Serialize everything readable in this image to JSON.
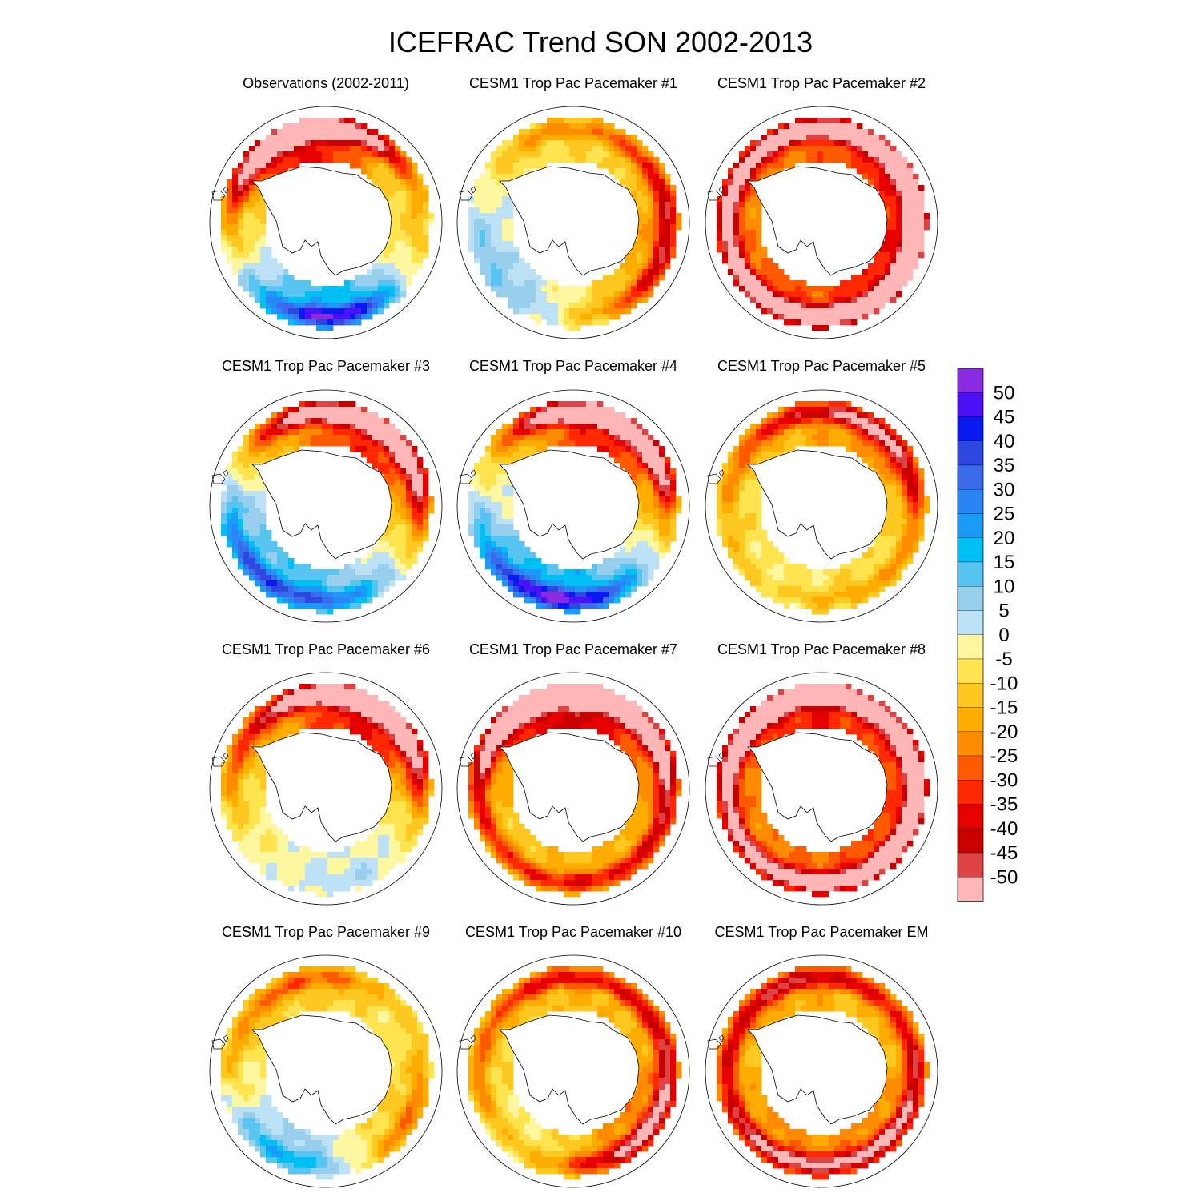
{
  "chart_data": {
    "type": "heatmap",
    "title": "ICEFRAC Trend SON 2002-2013",
    "projection": "south-polar-stereographic",
    "layout": "4x3 panel grid",
    "panels": [
      {
        "title": "Observations (2002-2011)",
        "pattern": {
          "pos": [
            [
              10,
              17,
              5
            ],
            [
              210,
              45,
              4.5
            ],
            [
              175,
              25,
              3
            ],
            [
              150,
              20,
              3
            ],
            [
              275,
              22,
              3
            ],
            [
              320,
              -18,
              4
            ],
            [
              350,
              -35,
              4
            ],
            [
              0,
              -30,
              4
            ],
            [
              60,
              -10,
              3.5
            ],
            [
              85,
              8,
              3
            ],
            [
              100,
              -8,
              3
            ],
            [
              250,
              -10,
              3
            ]
          ],
          "neg": [
            [
              300,
              -8,
              6
            ],
            [
              330,
              -30,
              5
            ],
            [
              260,
              -18,
              4
            ],
            [
              120,
              -12,
              4
            ],
            [
              40,
              -8,
              3
            ],
            [
              200,
              -12,
              4
            ]
          ]
        }
      },
      {
        "title": "CESM1 Trop Pac Pacemaker #1",
        "pattern": {
          "pos": [
            [
              90,
              -28,
              4
            ],
            [
              130,
              -22,
              5
            ],
            [
              160,
              -12,
              5
            ],
            [
              320,
              -15,
              4
            ]
          ],
          "neg": [
            [
              0,
              -8,
              7
            ],
            [
              30,
              -8,
              5
            ],
            [
              60,
              -5,
              4
            ],
            [
              300,
              8,
              5
            ],
            [
              240,
              12,
              5
            ],
            [
              200,
              10,
              4
            ],
            [
              120,
              8,
              5
            ],
            [
              80,
              5,
              4
            ]
          ]
        }
      },
      {
        "title": "CESM1 Trop Pac Pacemaker #2",
        "pattern": {
          "pos": [
            [
              210,
              -35,
              4
            ],
            [
              280,
              -15,
              4
            ],
            [
              320,
              -8,
              4
            ],
            [
              130,
              -22,
              4
            ]
          ],
          "neg": [
            [
              0,
              -18,
              7
            ],
            [
              30,
              -30,
              5
            ],
            [
              60,
              -22,
              5
            ],
            [
              90,
              -20,
              4
            ],
            [
              120,
              -20,
              5
            ],
            [
              150,
              -18,
              4
            ],
            [
              180,
              -12,
              4
            ],
            [
              240,
              -16,
              5
            ],
            [
              300,
              -12,
              5
            ],
            [
              340,
              -8,
              6
            ]
          ]
        }
      },
      {
        "title": "CESM1 Trop Pac Pacemaker #3",
        "pattern": {
          "pos": [
            [
              210,
              45,
              6
            ],
            [
              150,
              35,
              5
            ],
            [
              80,
              18,
              4
            ],
            [
              0,
              15,
              4
            ],
            [
              260,
              20,
              4
            ],
            [
              300,
              12,
              3
            ]
          ],
          "neg": [
            [
              0,
              -36,
              7
            ],
            [
              30,
              -50,
              5
            ],
            [
              120,
              -35,
              5
            ],
            [
              60,
              -20,
              4
            ],
            [
              310,
              -18,
              4
            ],
            [
              180,
              -15,
              4
            ],
            [
              240,
              -12,
              4
            ]
          ]
        }
      },
      {
        "title": "CESM1 Trop Pac Pacemaker #4",
        "pattern": {
          "pos": [
            [
              215,
              48,
              6
            ],
            [
              170,
              20,
              4
            ],
            [
              100,
              10,
              4
            ],
            [
              320,
              12,
              4
            ],
            [
              300,
              8,
              3
            ]
          ],
          "neg": [
            [
              0,
              -38,
              7
            ],
            [
              30,
              -45,
              5
            ],
            [
              60,
              -12,
              4
            ],
            [
              130,
              -10,
              4
            ],
            [
              270,
              -12,
              4
            ],
            [
              340,
              -10,
              5
            ]
          ]
        }
      },
      {
        "title": "CESM1 Trop Pac Pacemaker #5",
        "pattern": {
          "pos": [
            [
              120,
              15,
              4
            ],
            [
              220,
              8,
              4
            ],
            [
              300,
              10,
              4
            ],
            [
              20,
              5,
              4
            ],
            [
              80,
              8,
              3
            ]
          ],
          "neg": [
            [
              0,
              -30,
              6
            ],
            [
              60,
              -25,
              4
            ],
            [
              120,
              -22,
              5
            ],
            [
              40,
              -14,
              4
            ],
            [
              160,
              -10,
              4
            ],
            [
              240,
              -14,
              4
            ],
            [
              310,
              -18,
              4
            ]
          ]
        }
      },
      {
        "title": "CESM1 Trop Pac Pacemaker #6",
        "pattern": {
          "pos": [
            [
              170,
              20,
              4
            ],
            [
              100,
              15,
              4
            ],
            [
              320,
              8,
              3
            ],
            [
              240,
              8,
              4
            ]
          ],
          "neg": [
            [
              0,
              -32,
              6
            ],
            [
              30,
              -45,
              5
            ],
            [
              60,
              -25,
              4
            ],
            [
              140,
              -12,
              5
            ],
            [
              200,
              -10,
              4
            ],
            [
              280,
              -12,
              4
            ],
            [
              330,
              -10,
              5
            ]
          ]
        }
      },
      {
        "title": "CESM1 Trop Pac Pacemaker #7",
        "pattern": {
          "pos": [
            [
              30,
              -44,
              5
            ],
            [
              0,
              -30,
              4
            ],
            [
              330,
              -20,
              3
            ]
          ],
          "neg": [
            [
              0,
              -25,
              5
            ],
            [
              300,
              -30,
              4
            ],
            [
              150,
              -20,
              5
            ],
            [
              190,
              -15,
              5
            ],
            [
              240,
              -12,
              4
            ],
            [
              100,
              -12,
              4
            ],
            [
              60,
              -10,
              4
            ]
          ]
        }
      },
      {
        "title": "CESM1 Trop Pac Pacemaker #8",
        "pattern": {
          "pos": [
            [
              30,
              -40,
              5
            ],
            [
              0,
              -22,
              4
            ],
            [
              90,
              -10,
              4
            ],
            [
              200,
              -12,
              4
            ],
            [
              250,
              -10,
              4
            ]
          ],
          "neg": [
            [
              300,
              -48,
              5
            ],
            [
              120,
              -40,
              5
            ],
            [
              170,
              -30,
              5
            ],
            [
              330,
              -15,
              4
            ],
            [
              210,
              -12,
              4
            ],
            [
              60,
              -15,
              4
            ]
          ]
        }
      },
      {
        "title": "CESM1 Trop Pac Pacemaker #9",
        "pattern": {
          "pos": [
            [
              0,
              -45,
              5
            ],
            [
              130,
              -38,
              5
            ],
            [
              100,
              -10,
              4
            ],
            [
              280,
              -12,
              4
            ],
            [
              220,
              -12,
              4
            ]
          ],
          "neg": [
            [
              170,
              20,
              5
            ],
            [
              210,
              30,
              4
            ],
            [
              60,
              12,
              5
            ],
            [
              340,
              10,
              5
            ],
            [
              20,
              8,
              4
            ],
            [
              90,
              8,
              4
            ]
          ]
        }
      },
      {
        "title": "CESM1 Trop Pac Pacemaker #10",
        "pattern": {
          "pos": [
            [
              300,
              -32,
              5
            ],
            [
              0,
              -25,
              5
            ],
            [
              60,
              -14,
              4
            ],
            [
              130,
              -30,
              4
            ],
            [
              180,
              -10,
              4
            ],
            [
              250,
              -12,
              4
            ]
          ],
          "neg": [
            [
              300,
              18,
              4
            ],
            [
              60,
              -10,
              5
            ],
            [
              100,
              -10,
              4
            ],
            [
              220,
              12,
              4
            ],
            [
              30,
              8,
              4
            ],
            [
              150,
              -12,
              4
            ]
          ]
        }
      },
      {
        "title": "CESM1 Trop Pac Pacemaker EM",
        "pattern": {
          "pos": [
            [
              0,
              -18,
              5
            ],
            [
              30,
              -20,
              5
            ],
            [
              60,
              -14,
              4
            ],
            [
              100,
              -12,
              4
            ],
            [
              130,
              -16,
              4
            ],
            [
              170,
              -22,
              4
            ],
            [
              210,
              -20,
              4
            ],
            [
              250,
              -14,
              4
            ],
            [
              300,
              -20,
              5
            ]
          ],
          "neg": [
            [
              40,
              15,
              4
            ],
            [
              120,
              -10,
              4
            ],
            [
              200,
              -8,
              4
            ],
            [
              330,
              -6,
              4
            ]
          ]
        }
      }
    ],
    "colorbar": {
      "labels": [
        "50",
        "45",
        "40",
        "35",
        "30",
        "25",
        "20",
        "15",
        "10",
        "5",
        "0",
        "-5",
        "-10",
        "-15",
        "-20",
        "-25",
        "-30",
        "-35",
        "-40",
        "-45",
        "-50"
      ],
      "colors": [
        "#8a2be2",
        "#4b10f5",
        "#0a19f0",
        "#2d47e0",
        "#3a6bea",
        "#2a85f7",
        "#1a9bf7",
        "#00bff3",
        "#57c4f2",
        "#98cfec",
        "#bde2f5",
        "#fff6a0",
        "#ffe34f",
        "#ffc820",
        "#ffab00",
        "#ff8c00",
        "#ff5a00",
        "#ff2800",
        "#e60000",
        "#c80000",
        "#dd4244",
        "#ffb6b6"
      ]
    }
  }
}
